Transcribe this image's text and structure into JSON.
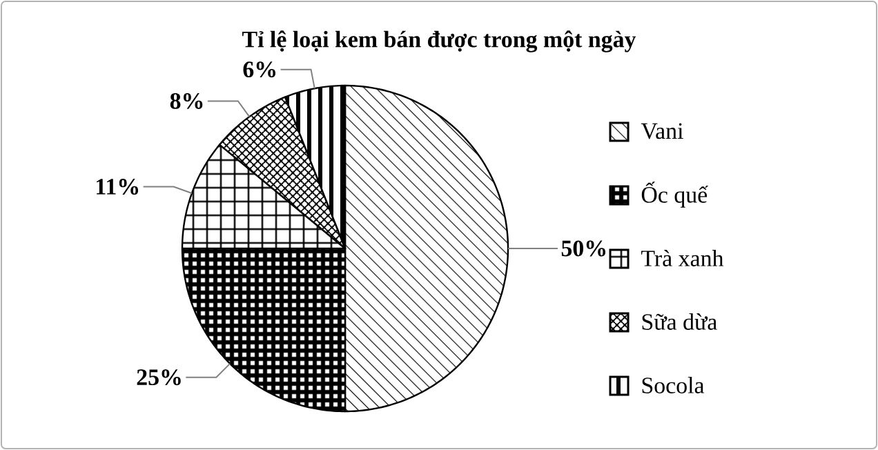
{
  "chart_data": {
    "type": "pie",
    "title": "Tỉ lệ loại kem bán được trong một ngày",
    "categories": [
      "Vani",
      "Ốc quế",
      "Trà xanh",
      "Sữa dừa",
      "Socola"
    ],
    "values": [
      50,
      25,
      11,
      8,
      6
    ],
    "colors": [
      "#000000",
      "#000000",
      "#000000",
      "#000000",
      "#000000"
    ],
    "value_labels": [
      "50%",
      "25%",
      "11%",
      "8%",
      "6%"
    ],
    "legend": "right"
  }
}
